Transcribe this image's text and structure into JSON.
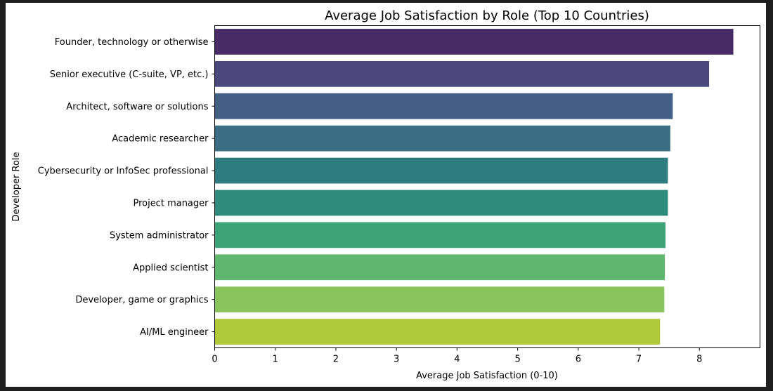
{
  "chart_data": {
    "type": "bar",
    "orientation": "horizontal",
    "title": "Average Job Satisfaction by Role (Top 10 Countries)",
    "xlabel": "Average Job Satisfaction (0-10)",
    "ylabel": "Developer Role",
    "xlim": [
      0,
      9
    ],
    "xticks": [
      0,
      1,
      2,
      3,
      4,
      5,
      6,
      7,
      8
    ],
    "grid": false,
    "categories": [
      "Founder, technology or otherwise",
      "Senior executive (C-suite, VP, etc.)",
      "Architect, software or solutions",
      "Academic researcher",
      "Cybersecurity or InfoSec professional",
      "Project manager",
      "System administrator",
      "Applied scientist",
      "Developer, game or graphics",
      "AI/ML engineer"
    ],
    "values": [
      8.56,
      8.16,
      7.56,
      7.52,
      7.48,
      7.48,
      7.44,
      7.43,
      7.42,
      7.35
    ],
    "colors": [
      "#482b66",
      "#49497d",
      "#445f86",
      "#3b6e82",
      "#2e7c80",
      "#2e8c7c",
      "#3ea377",
      "#5fb76f",
      "#8ac45c",
      "#b0c93b"
    ]
  }
}
